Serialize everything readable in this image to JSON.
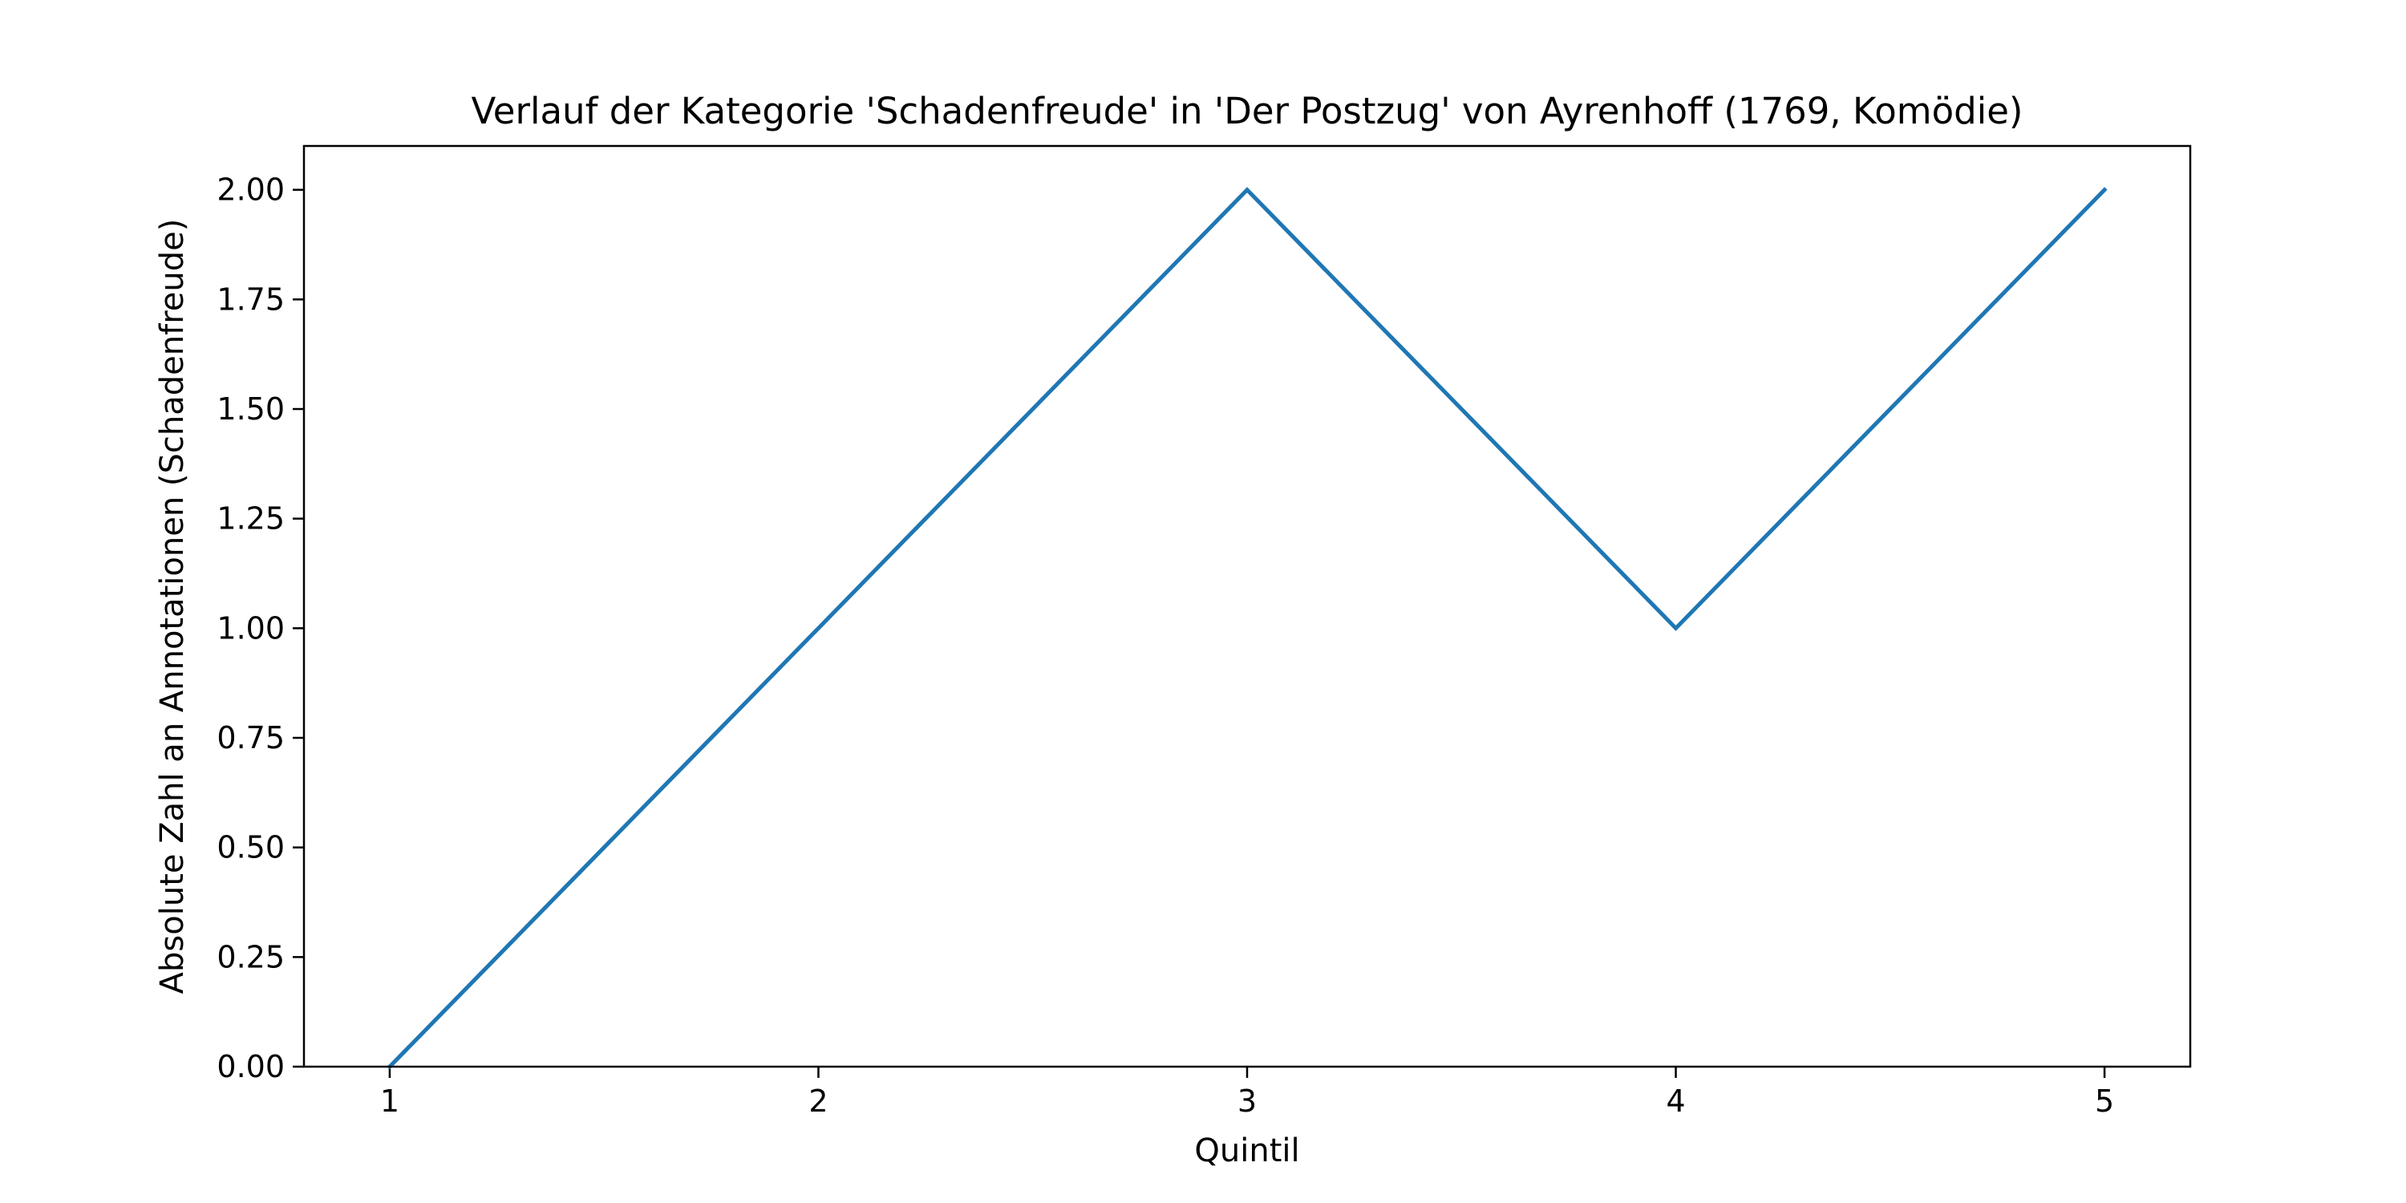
{
  "chart_data": {
    "type": "line",
    "title": "Verlauf der Kategorie 'Schadenfreude' in 'Der Postzug' von Ayrenhoff (1769, Komödie)",
    "xlabel": "Quintil",
    "ylabel": "Absolute Zahl an Annotationen (Schadenfreude)",
    "x": [
      1,
      2,
      3,
      4,
      5
    ],
    "series": [
      {
        "values": [
          0,
          1,
          2,
          1,
          2
        ],
        "color": "#1f77b4"
      }
    ],
    "xlim": [
      0.8,
      5.2
    ],
    "ylim": [
      0,
      2.1
    ],
    "x_ticks": [
      1,
      2,
      3,
      4,
      5
    ],
    "x_tick_labels": [
      "1",
      "2",
      "3",
      "4",
      "5"
    ],
    "y_ticks": [
      0,
      0.25,
      0.5,
      0.75,
      1.0,
      1.25,
      1.5,
      1.75,
      2.0
    ],
    "y_tick_labels": [
      "0.00",
      "0.25",
      "0.50",
      "0.75",
      "1.00",
      "1.25",
      "1.50",
      "1.75",
      "2.00"
    ],
    "grid": false,
    "legend": "none"
  }
}
